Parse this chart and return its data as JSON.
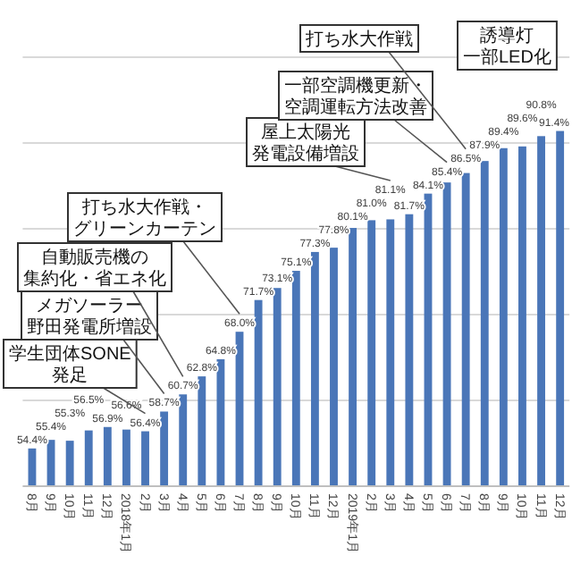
{
  "chart_data": {
    "type": "bar",
    "categories": [
      "8月",
      "9月",
      "10月",
      "11月",
      "12月",
      "2018年1月",
      "2月",
      "3月",
      "4月",
      "5月",
      "6月",
      "7月",
      "8月",
      "9月",
      "10月",
      "11月",
      "12月",
      "2019年1月",
      "2月",
      "3月",
      "4月",
      "5月",
      "6月",
      "7月",
      "8月",
      "9月",
      "10月",
      "11月",
      "12月"
    ],
    "values": [
      54.4,
      55.4,
      55.3,
      56.5,
      56.9,
      56.6,
      56.4,
      58.7,
      60.7,
      62.8,
      64.8,
      68.0,
      71.7,
      73.1,
      75.1,
      77.3,
      77.8,
      80.1,
      81.0,
      81.1,
      81.7,
      84.1,
      85.4,
      86.5,
      87.9,
      89.4,
      89.6,
      90.8,
      91.4
    ],
    "value_labels": [
      "54.4%",
      "55.4%",
      "55.3%",
      "56.5%",
      "56.9%",
      "56.6%",
      "56.4%",
      "58.7%",
      "60.7%",
      "62.8%",
      "64.8%",
      "68.0%",
      "71.7%",
      "73.1%",
      "75.1%",
      "77.3%",
      "77.8%",
      "80.1%",
      "81.0%",
      "81.1%",
      "81.7%",
      "84.1%",
      "85.4%",
      "86.5%",
      "87.9%",
      "89.4%",
      "89.6%",
      "90.8%",
      "91.4%"
    ],
    "color": "#4a76b8",
    "ylim": [
      50,
      100
    ],
    "yticks": [
      {
        "value": 60,
        "label": null
      },
      {
        "value": 70,
        "label": null
      },
      {
        "value": 80,
        "label": null
      },
      {
        "value": 90,
        "label": null
      },
      {
        "value": 100,
        "label": null
      }
    ],
    "tick_labels": "x",
    "grid": "y",
    "annotations": [
      "学生団体SONE発足",
      "メガソーラー野田発電所増設",
      "自動販売機の集約化・省エネ化",
      "打ち水大作戦・グリーンカーテン",
      "屋上太陽光発電設備増設",
      "一部空調機更新・空調運転方法改善",
      "打ち水大作戦",
      "誘導灯一部LED化"
    ]
  }
}
